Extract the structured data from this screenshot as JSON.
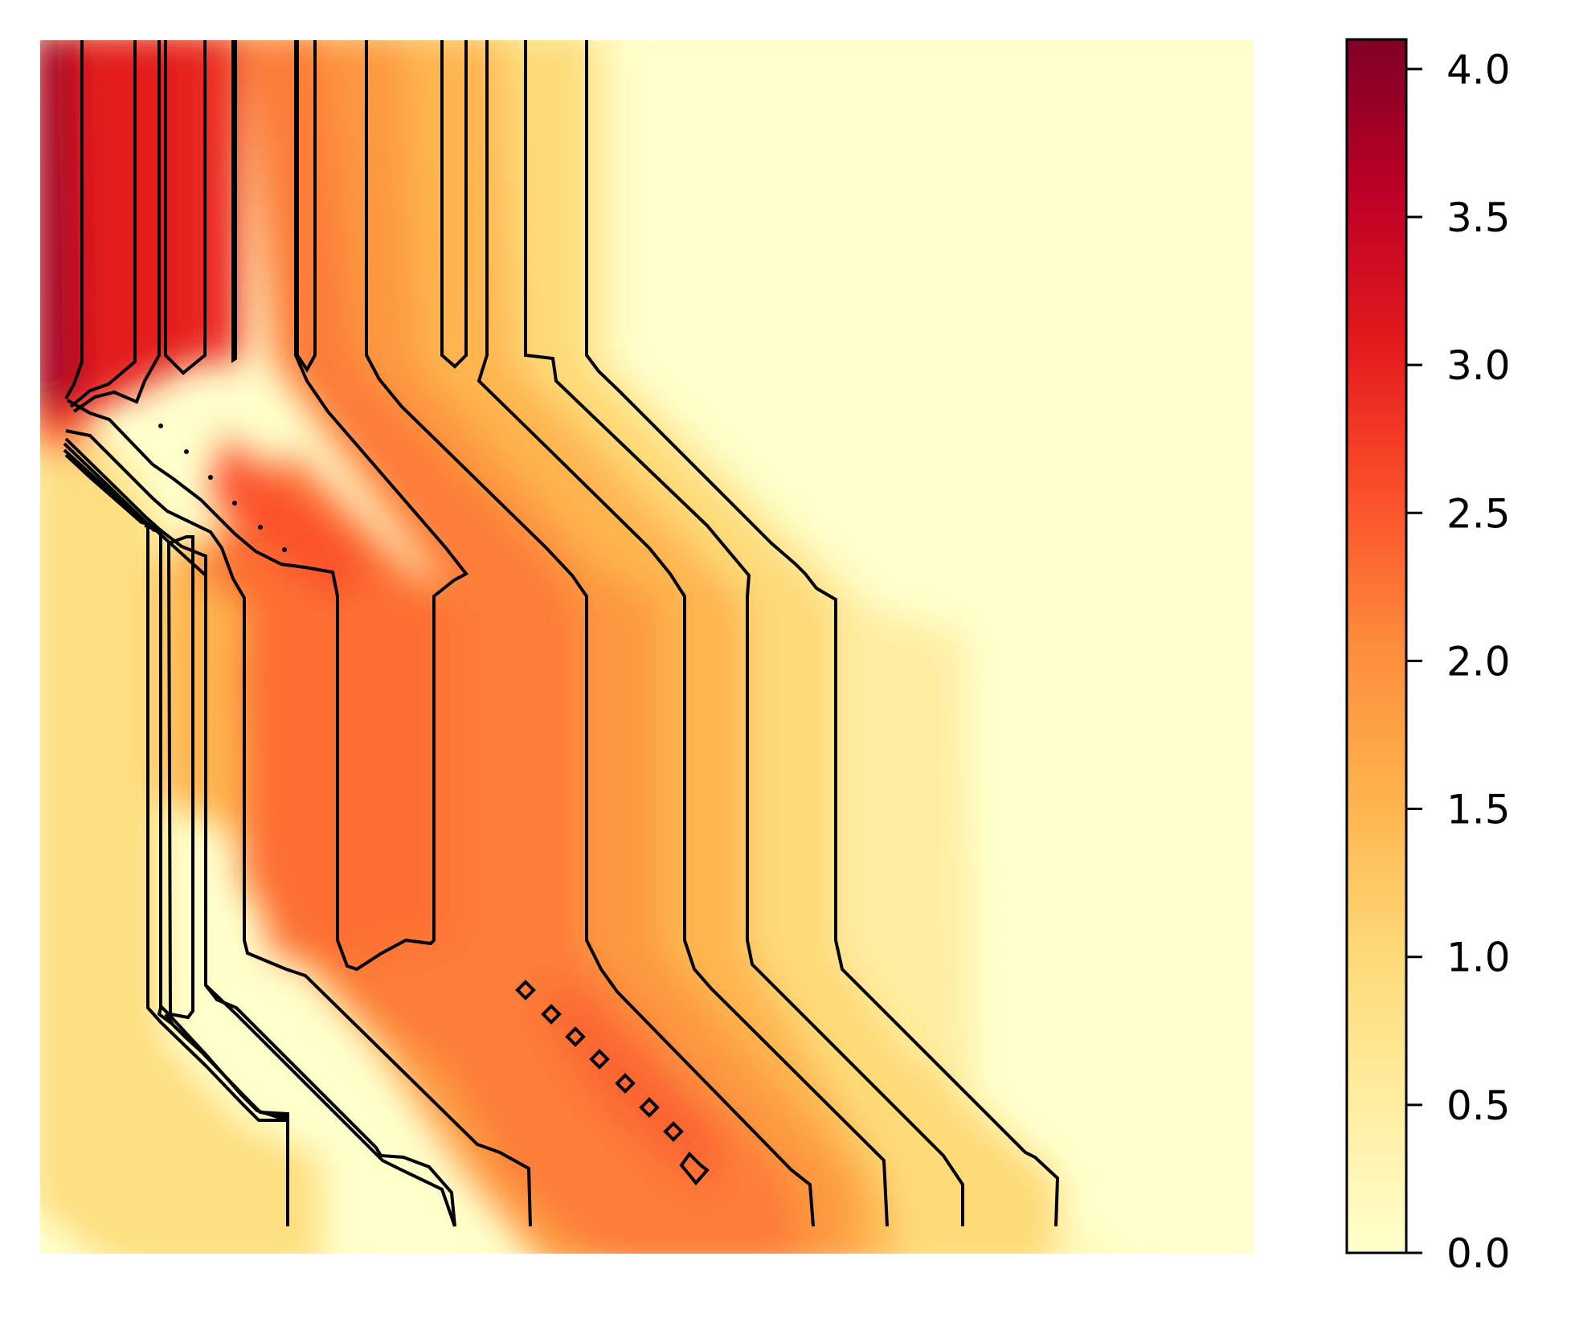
{
  "chart_data": {
    "type": "heatmap",
    "title": "",
    "xlabel": "",
    "ylabel": "",
    "colormap": "YlOrRd",
    "colormap_stops": [
      "#ffffcc",
      "#ffeda0",
      "#fed976",
      "#feb24c",
      "#fd8d3c",
      "#fc4e2a",
      "#e31a1c",
      "#bd0026",
      "#800026"
    ],
    "value_range": [
      0.0,
      4.1
    ],
    "axes_visible": false,
    "grid": false,
    "contour_color": "#000000",
    "colorbar": {
      "position": "right",
      "ticks": [
        0.0,
        0.5,
        1.0,
        1.5,
        2.0,
        2.5,
        3.0,
        3.5,
        4.0
      ],
      "tick_labels": [
        "0.0",
        "0.5",
        "1.0",
        "1.5",
        "2.0",
        "2.5",
        "3.0",
        "3.5",
        "4.0"
      ]
    }
  }
}
